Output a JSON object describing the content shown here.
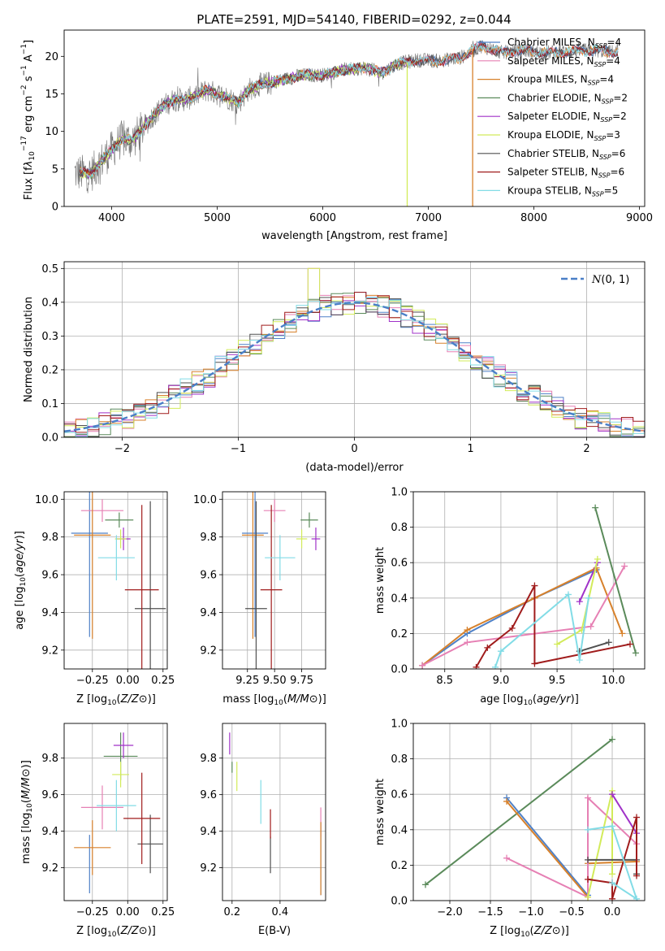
{
  "figure": {
    "title": "PLATE=2591, MJD=54140, FIBERID=0292, z=0.044"
  },
  "colors": {
    "Chabrier MILES": "#4f81c7",
    "Salpeter MILES": "#e680b4",
    "Kroupa MILES": "#d7812b",
    "Chabrier ELODIE": "#5a8a5a",
    "Salpeter ELODIE": "#a032c8",
    "Kroupa ELODIE": "#d2eb5a",
    "Chabrier STELIB": "#505050",
    "Salpeter STELIB": "#a01c1c",
    "Kroupa STELIB": "#82dce6",
    "data": "#707070",
    "normal": "#4a7fc7"
  },
  "chart_data": [
    {
      "id": "spectrum",
      "type": "line",
      "xlabel": "wavelength [Angstrom, rest frame]",
      "ylabel": "Flux [fλ10^-17 erg cm^-2 s^-1 A^-1]",
      "ylabel_parts": {
        "a": "Flux [f",
        "b": "λ",
        "c": "10",
        "d": "−17",
        "e": " erg cm",
        "f": "−2",
        "g": " s",
        "h": "−1",
        "i": " A",
        "j": "−1",
        "k": "]"
      },
      "xlim": [
        3550,
        9050
      ],
      "ylim": [
        0,
        23.5
      ],
      "xticks": [
        4000,
        5000,
        6000,
        7000,
        8000,
        9000
      ],
      "yticks": [
        0,
        5,
        10,
        15,
        20
      ],
      "grid": false,
      "legend_placement": "right",
      "continuum": [
        [
          3650,
          4.5
        ],
        [
          3800,
          4.3
        ],
        [
          3900,
          6.0
        ],
        [
          4000,
          7.5
        ],
        [
          4100,
          9.0
        ],
        [
          4200,
          8.8
        ],
        [
          4300,
          10.5
        ],
        [
          4400,
          12.2
        ],
        [
          4500,
          13.5
        ],
        [
          4600,
          14.3
        ],
        [
          4700,
          14.2
        ],
        [
          4800,
          14.8
        ],
        [
          4900,
          15.5
        ],
        [
          5000,
          15.0
        ],
        [
          5100,
          14.5
        ],
        [
          5200,
          13.8
        ],
        [
          5300,
          15.6
        ],
        [
          5400,
          16.2
        ],
        [
          5600,
          16.8
        ],
        [
          5800,
          17.5
        ],
        [
          6000,
          17.5
        ],
        [
          6200,
          18.2
        ],
        [
          6400,
          18.5
        ],
        [
          6560,
          17.8
        ],
        [
          6700,
          19.0
        ],
        [
          6900,
          19.5
        ],
        [
          7100,
          19.4
        ],
        [
          7300,
          19.8
        ],
        [
          7500,
          21.4
        ],
        [
          7700,
          20.5
        ],
        [
          7900,
          20.8
        ],
        [
          8100,
          20.5
        ],
        [
          8300,
          20.6
        ],
        [
          8600,
          20.8
        ],
        [
          8800,
          20.5
        ]
      ],
      "spikes": [
        {
          "series": "Kroupa ELODIE",
          "x": 6800,
          "from": 19.2,
          "to": 0
        },
        {
          "series": "Kroupa MILES",
          "x": 7420,
          "from": 21.0,
          "to": 0
        }
      ],
      "series": [
        {
          "name": "Chabrier MILES",
          "label": "Chabrier MILES, N",
          "sub": "SSP",
          "count": "=4",
          "xmax": 8800
        },
        {
          "name": "Salpeter MILES",
          "label": "Salpeter MILES, N",
          "sub": "SSP",
          "count": "=4",
          "xmax": 8800
        },
        {
          "name": "Kroupa MILES",
          "label": "Kroupa MILES, N",
          "sub": "SSP",
          "count": "=4",
          "xmax": 8800
        },
        {
          "name": "Chabrier ELODIE",
          "label": "Chabrier ELODIE, N",
          "sub": "SSP",
          "count": "=2",
          "xmax": 6800
        },
        {
          "name": "Salpeter ELODIE",
          "label": "Salpeter ELODIE, N",
          "sub": "SSP",
          "count": "=2",
          "xmax": 6800
        },
        {
          "name": "Kroupa ELODIE",
          "label": "Kroupa ELODIE, N",
          "sub": "SSP",
          "count": "=3",
          "xmax": 6800
        },
        {
          "name": "Chabrier STELIB",
          "label": "Chabrier STELIB, N",
          "sub": "SSP",
          "count": "=6",
          "xmax": 8800
        },
        {
          "name": "Salpeter STELIB",
          "label": "Salpeter STELIB, N",
          "sub": "SSP",
          "count": "=6",
          "xmax": 8800
        },
        {
          "name": "Kroupa STELIB",
          "label": "Kroupa STELIB, N",
          "sub": "SSP",
          "count": "=5",
          "xmax": 8800
        }
      ]
    },
    {
      "id": "residuals",
      "type": "line",
      "xlabel": "(data-model)/error",
      "ylabel": "Normed distribution",
      "xlim": [
        -2.5,
        2.5
      ],
      "ylim": [
        0,
        0.52
      ],
      "xticks": [
        -2,
        -1,
        0,
        1,
        2
      ],
      "yticks": [
        0.0,
        0.1,
        0.2,
        0.3,
        0.4,
        0.5
      ],
      "grid": true,
      "legend_placement": "top-right",
      "legend": "N(0,1)",
      "bin_width": 0.1,
      "bin_start": -2.5
    },
    {
      "id": "age_vs_Z",
      "type": "scatter",
      "xlabel": "Z [log10(Z/Z⊙)]",
      "ylabel": "age [log10(age/yr)]",
      "xlim": [
        -0.45,
        0.28
      ],
      "ylim": [
        9.1,
        10.04
      ],
      "xticks": [
        -0.25,
        0.0,
        0.25
      ],
      "yticks": [
        9.2,
        9.4,
        9.6,
        9.8,
        10.0
      ],
      "grid": true,
      "points": [
        {
          "series": "Chabrier MILES",
          "x": -0.27,
          "y": 9.82,
          "xerr": 0.13,
          "yerr": 0.55
        },
        {
          "series": "Salpeter MILES",
          "x": -0.18,
          "y": 9.94,
          "xerr": 0.15,
          "yerr": 0.06
        },
        {
          "series": "Kroupa MILES",
          "x": -0.25,
          "y": 9.81,
          "xerr": 0.13,
          "yerr": 0.55
        },
        {
          "series": "Chabrier ELODIE",
          "x": -0.06,
          "y": 9.89,
          "xerr": 0.1,
          "yerr": 0.04
        },
        {
          "series": "Salpeter ELODIE",
          "x": -0.03,
          "y": 9.79,
          "xerr": 0.05,
          "yerr": 0.06
        },
        {
          "series": "Kroupa ELODIE",
          "x": -0.05,
          "y": 9.79,
          "xerr": 0.04,
          "yerr": 0.05
        },
        {
          "series": "Chabrier STELIB",
          "x": 0.16,
          "y": 9.42,
          "xerr": 0.11,
          "yerr": 0.57
        },
        {
          "series": "Salpeter STELIB",
          "x": 0.1,
          "y": 9.52,
          "xerr": 0.12,
          "yerr": 0.45
        },
        {
          "series": "Kroupa STELIB",
          "x": -0.08,
          "y": 9.69,
          "xerr": 0.13,
          "yerr": 0.12
        }
      ]
    },
    {
      "id": "age_vs_mass",
      "type": "scatter",
      "xlabel": "mass [log10(M/M⊙)]",
      "ylabel": "",
      "xlim": [
        9.02,
        9.97
      ],
      "ylim": [
        9.1,
        10.04
      ],
      "xticks": [
        9.25,
        9.5,
        9.75
      ],
      "yticks": [
        9.2,
        9.4,
        9.6,
        9.8,
        10.0
      ],
      "grid": true,
      "points": [
        {
          "series": "Chabrier MILES",
          "x": 9.32,
          "y": 9.82,
          "xerr": 0.12,
          "yerr": 0.55
        },
        {
          "series": "Salpeter MILES",
          "x": 9.5,
          "y": 9.94,
          "xerr": 0.1,
          "yerr": 0.06
        },
        {
          "series": "Kroupa MILES",
          "x": 9.3,
          "y": 9.81,
          "xerr": 0.1,
          "yerr": 0.55
        },
        {
          "series": "Chabrier ELODIE",
          "x": 9.82,
          "y": 9.89,
          "xerr": 0.08,
          "yerr": 0.04
        },
        {
          "series": "Salpeter ELODIE",
          "x": 9.88,
          "y": 9.79,
          "xerr": 0.04,
          "yerr": 0.06
        },
        {
          "series": "Kroupa ELODIE",
          "x": 9.75,
          "y": 9.79,
          "xerr": 0.05,
          "yerr": 0.05
        },
        {
          "series": "Chabrier STELIB",
          "x": 9.33,
          "y": 9.42,
          "xerr": 0.1,
          "yerr": 0.57
        },
        {
          "series": "Salpeter STELIB",
          "x": 9.47,
          "y": 9.52,
          "xerr": 0.1,
          "yerr": 0.45
        },
        {
          "series": "Kroupa STELIB",
          "x": 9.55,
          "y": 9.69,
          "xerr": 0.14,
          "yerr": 0.12
        }
      ]
    },
    {
      "id": "weight_vs_age",
      "type": "line",
      "xlabel": "age [log10(age/yr)]",
      "ylabel": "mass weight",
      "xlim": [
        8.22,
        10.28
      ],
      "ylim": [
        0,
        1.0
      ],
      "xticks": [
        8.5,
        9.0,
        9.5,
        10.0
      ],
      "yticks": [
        0.0,
        0.2,
        0.4,
        0.6,
        0.8,
        1.0
      ],
      "grid": true,
      "lines": [
        {
          "series": "Chabrier MILES",
          "x": [
            8.3,
            8.7,
            9.3,
            9.85
          ],
          "y": [
            0.02,
            0.2,
            0.4,
            0.56
          ]
        },
        {
          "series": "Kroupa MILES",
          "x": [
            8.3,
            8.7,
            9.3,
            9.85,
            10.08
          ],
          "y": [
            0.02,
            0.22,
            0.4,
            0.57,
            0.2
          ]
        },
        {
          "series": "Salpeter MILES",
          "x": [
            8.3,
            8.7,
            9.8,
            10.1
          ],
          "y": [
            0.02,
            0.15,
            0.24,
            0.58
          ]
        },
        {
          "series": "Chabrier ELODIE",
          "x": [
            9.84,
            10.2
          ],
          "y": [
            0.91,
            0.09
          ]
        },
        {
          "series": "Salpeter ELODIE",
          "x": [
            9.7,
            9.86
          ],
          "y": [
            0.38,
            0.6
          ]
        },
        {
          "series": "Kroupa ELODIE",
          "x": [
            9.5,
            9.72,
            9.86
          ],
          "y": [
            0.14,
            0.22,
            0.62
          ]
        },
        {
          "series": "Chabrier STELIB",
          "x": [
            9.7,
            9.96
          ],
          "y": [
            0.1,
            0.15
          ]
        },
        {
          "series": "Salpeter STELIB",
          "x": [
            8.78,
            8.88,
            9.1,
            9.3,
            9.3,
            10.15
          ],
          "y": [
            0.01,
            0.12,
            0.23,
            0.47,
            0.03,
            0.14
          ]
        },
        {
          "series": "Kroupa STELIB",
          "x": [
            8.95,
            9.0,
            9.6,
            9.7,
            9.78
          ],
          "y": [
            0.01,
            0.1,
            0.42,
            0.05,
            0.4
          ]
        }
      ]
    },
    {
      "id": "mass_vs_Z",
      "type": "scatter",
      "xlabel": "Z [log10(Z/Z⊙)]",
      "ylabel": "mass [log10(M/M⊙)]",
      "xlim": [
        -0.45,
        0.28
      ],
      "ylim": [
        9.02,
        9.99
      ],
      "xticks": [
        -0.25,
        0.0,
        0.25
      ],
      "yticks": [
        9.2,
        9.4,
        9.6,
        9.8
      ],
      "grid": true,
      "points": [
        {
          "series": "Chabrier MILES",
          "x": -0.27,
          "y": 9.22,
          "xerr": 0.0,
          "yerr": 0.16
        },
        {
          "series": "Salpeter MILES",
          "x": -0.18,
          "y": 9.53,
          "xerr": 0.15,
          "yerr": 0.12
        },
        {
          "series": "Kroupa MILES",
          "x": -0.25,
          "y": 9.31,
          "xerr": 0.13,
          "yerr": 0.15
        },
        {
          "series": "Chabrier ELODIE",
          "x": -0.05,
          "y": 9.81,
          "xerr": 0.12,
          "yerr": 0.13
        },
        {
          "series": "Salpeter ELODIE",
          "x": -0.03,
          "y": 9.87,
          "xerr": 0.07,
          "yerr": 0.07
        },
        {
          "series": "Kroupa ELODIE",
          "x": -0.05,
          "y": 9.71,
          "xerr": 0.06,
          "yerr": 0.07
        },
        {
          "series": "Chabrier STELIB",
          "x": 0.16,
          "y": 9.33,
          "xerr": 0.09,
          "yerr": 0.16
        },
        {
          "series": "Salpeter STELIB",
          "x": 0.1,
          "y": 9.47,
          "xerr": 0.13,
          "yerr": 0.25
        },
        {
          "series": "Kroupa STELIB",
          "x": -0.08,
          "y": 9.54,
          "xerr": 0.14,
          "yerr": 0.14
        }
      ]
    },
    {
      "id": "mass_vs_ebv",
      "type": "scatter",
      "xlabel": "E(B-V)",
      "ylabel": "",
      "xlim": [
        0.16,
        0.59
      ],
      "ylim": [
        9.02,
        9.99
      ],
      "xticks": [
        0.2,
        0.4
      ],
      "yticks": [
        9.2,
        9.4,
        9.6,
        9.8
      ],
      "grid": true,
      "points": [
        {
          "series": "Chabrier MILES",
          "x": 0.57,
          "y": 9.25,
          "xerr": 0.0,
          "yerr": 0.2
        },
        {
          "series": "Salpeter MILES",
          "x": 0.57,
          "y": 9.45,
          "xerr": 0.0,
          "yerr": 0.08
        },
        {
          "series": "Kroupa MILES",
          "x": 0.57,
          "y": 9.25,
          "xerr": 0.0,
          "yerr": 0.2
        },
        {
          "series": "Chabrier ELODIE",
          "x": 0.2,
          "y": 9.75,
          "xerr": 0.0,
          "yerr": 0.03
        },
        {
          "series": "Salpeter ELODIE",
          "x": 0.19,
          "y": 9.88,
          "xerr": 0.0,
          "yerr": 0.06
        },
        {
          "series": "Kroupa ELODIE",
          "x": 0.22,
          "y": 9.7,
          "xerr": 0.0,
          "yerr": 0.08
        },
        {
          "series": "Chabrier STELIB",
          "x": 0.36,
          "y": 9.27,
          "xerr": 0.0,
          "yerr": 0.1
        },
        {
          "series": "Salpeter STELIB",
          "x": 0.36,
          "y": 9.44,
          "xerr": 0.0,
          "yerr": 0.08
        },
        {
          "series": "Kroupa STELIB",
          "x": 0.32,
          "y": 9.56,
          "xerr": 0.0,
          "yerr": 0.12
        }
      ]
    },
    {
      "id": "weight_vs_Z",
      "type": "line",
      "xlabel": "Z [log10(Z/Z⊙)]",
      "ylabel": "mass weight",
      "xlim": [
        -2.45,
        0.4
      ],
      "ylim": [
        0,
        1.0
      ],
      "xticks": [
        -2.0,
        -1.5,
        -1.0,
        -0.5,
        0.0
      ],
      "yticks": [
        0.0,
        0.2,
        0.4,
        0.6,
        0.8,
        1.0
      ],
      "grid": true,
      "lines": [
        {
          "series": "Chabrier ELODIE",
          "x": [
            -2.3,
            0.0
          ],
          "y": [
            0.09,
            0.91
          ]
        },
        {
          "series": "Chabrier MILES",
          "x": [
            -1.3,
            -0.3
          ],
          "y": [
            0.58,
            0.03
          ]
        },
        {
          "series": "Kroupa MILES",
          "x": [
            -1.3,
            -0.3,
            -0.3,
            0.3
          ],
          "y": [
            0.56,
            0.02,
            0.21,
            0.22
          ]
        },
        {
          "series": "Salpeter MILES",
          "x": [
            -1.3,
            -0.3,
            -0.3,
            0.3
          ],
          "y": [
            0.24,
            0.02,
            0.58,
            0.32
          ]
        },
        {
          "series": "Kroupa ELODIE",
          "x": [
            -0.3,
            0.0,
            0.0
          ],
          "y": [
            0.02,
            0.62,
            0.15
          ]
        },
        {
          "series": "Salpeter ELODIE",
          "x": [
            0.0,
            0.3
          ],
          "y": [
            0.6,
            0.38
          ]
        },
        {
          "series": "Chabrier STELIB",
          "x": [
            -0.3,
            0.3,
            0.3
          ],
          "y": [
            0.23,
            0.23,
            0.15
          ]
        },
        {
          "series": "Salpeter STELIB",
          "x": [
            -0.3,
            0.0,
            0.0,
            0.3,
            0.3
          ],
          "y": [
            0.12,
            0.1,
            0.01,
            0.47,
            0.14
          ]
        },
        {
          "series": "Kroupa STELIB",
          "x": [
            -0.3,
            0.0,
            0.3,
            0.0
          ],
          "y": [
            0.4,
            0.42,
            0.01,
            0.1
          ]
        }
      ]
    }
  ]
}
